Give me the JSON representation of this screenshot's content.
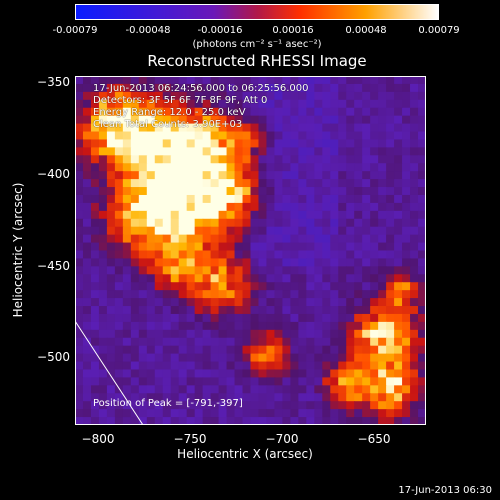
{
  "colorbar": {
    "ticks": [
      "-0.00079",
      "-0.00048",
      "-0.00016",
      "0.00016",
      "0.00048",
      "0.00079"
    ],
    "units": "(photons cm⁻² s⁻¹ asec⁻²)"
  },
  "title": "Reconstructed RHESSI Image",
  "annotations": {
    "time": "17-Jun-2013 06:24:56.000 to 06:25:56.000",
    "detectors": "Detectors: 3F 5F 6F 7F 8F 9F, Att 0",
    "energy": "Energy Range: 12.0 - 25.0 keV",
    "clean": "Clean    Total Counts: 3.90E+03"
  },
  "peak_text": "Position of Peak = [-791,-397]",
  "axes": {
    "xlabel": "Heliocentric X (arcsec)",
    "ylabel": "Heliocentric Y (arcsec)",
    "xticks": [
      "−800",
      "−750",
      "−700",
      "−650"
    ],
    "yticks": [
      "−350",
      "−400",
      "−450",
      "−500"
    ]
  },
  "footer": "17-Jun-2013 06:30"
}
